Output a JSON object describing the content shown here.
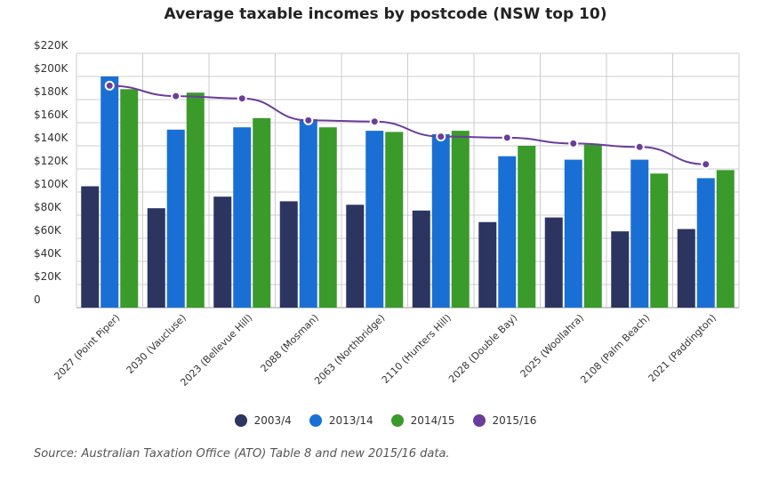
{
  "chart_data": {
    "type": "bar",
    "title": "Average taxable incomes by postcode (NSW top 10)",
    "categories": [
      "2027 (Point Piper)",
      "2030 (Vaucluse)",
      "2023 (Bellevue Hill)",
      "2088 (Mosman)",
      "2063 (Northbridge)",
      "2110 (Hunters Hill)",
      "2028 (Double Bay)",
      "2025 (Woollahra)",
      "2108 (Palm Beach)",
      "2021 (Paddington)"
    ],
    "yticks": [
      "0",
      "$20K",
      "$40K",
      "$60K",
      "$80K",
      "$100K",
      "$120K",
      "$140K",
      "$160K",
      "$180K",
      "$200K",
      "$220K"
    ],
    "ylim": [
      0,
      220000
    ],
    "grid": true,
    "legend_position": "bottom",
    "series": [
      {
        "name": "2003/4",
        "type": "bar",
        "color": "#2b3560",
        "values": [
          105000,
          86000,
          96000,
          92000,
          89000,
          84000,
          74000,
          78000,
          66000,
          68000
        ]
      },
      {
        "name": "2013/14",
        "type": "bar",
        "color": "#1a6fd4",
        "values": [
          200000,
          154000,
          156000,
          163000,
          153000,
          150000,
          131000,
          128000,
          128000,
          112000
        ]
      },
      {
        "name": "2014/15",
        "type": "bar",
        "color": "#3a9a2a",
        "values": [
          189000,
          186000,
          164000,
          156000,
          152000,
          153000,
          140000,
          141000,
          116000,
          119000
        ]
      },
      {
        "name": "2015/16",
        "type": "line",
        "color": "#6a3d9a",
        "values": [
          192000,
          183000,
          181000,
          162000,
          161000,
          148000,
          147000,
          142000,
          139000,
          124000
        ]
      }
    ]
  },
  "source_note": "Source: Australian Taxation Office (ATO) Table 8 and new 2015/16 data."
}
